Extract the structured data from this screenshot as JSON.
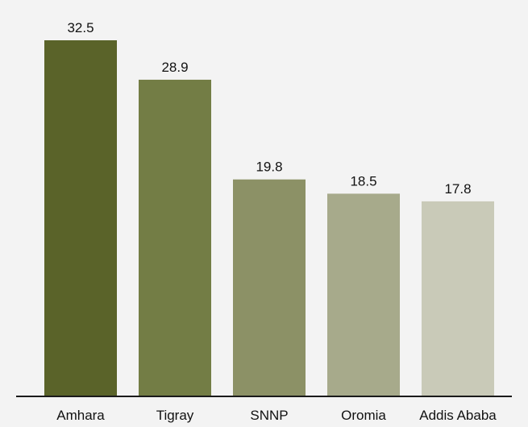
{
  "chart_data": {
    "type": "bar",
    "title": "",
    "xlabel": "",
    "ylabel": "",
    "categories": [
      "Amhara",
      "Tigray",
      "SNNP",
      "Oromia",
      "Addis Ababa"
    ],
    "values": [
      32.5,
      28.9,
      19.8,
      18.5,
      17.8
    ],
    "value_labels": [
      "32.5",
      "28.9",
      "19.8",
      "18.5",
      "17.8"
    ],
    "colors": [
      "#5a6329",
      "#737d45",
      "#8c9166",
      "#a7aa8b",
      "#c9cab8"
    ],
    "ylim": [
      0,
      32.5
    ],
    "grid": false,
    "legend": "none"
  }
}
